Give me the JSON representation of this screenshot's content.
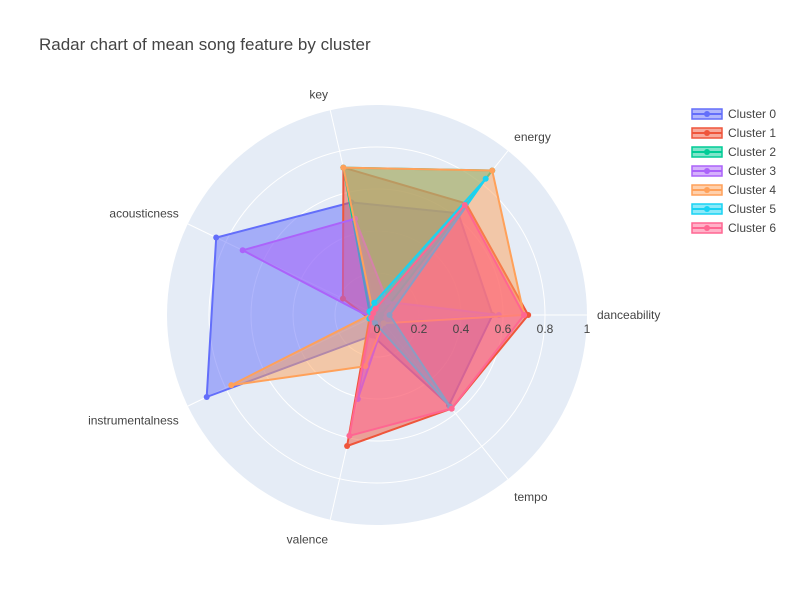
{
  "chart_data": {
    "type": "radar",
    "title": "Radar chart of mean song feature by cluster",
    "axes": [
      "danceability",
      "energy",
      "key",
      "acousticness",
      "instrumentalness",
      "valence",
      "tempo"
    ],
    "radial_range": [
      0,
      1
    ],
    "radial_ticks": [
      "0",
      "0.2",
      "0.4",
      "0.6",
      "0.8",
      "1"
    ],
    "grid": true,
    "legend_position": "top-right",
    "series": [
      {
        "name": "Cluster 0",
        "color": "#636efa",
        "values": [
          0.55,
          0.62,
          0.55,
          0.85,
          0.9,
          0.1,
          0.55
        ]
      },
      {
        "name": "Cluster 1",
        "color": "#EF553B",
        "values": [
          0.72,
          0.68,
          0.72,
          0.18,
          0.04,
          0.64,
          0.57
        ]
      },
      {
        "name": "Cluster 2",
        "color": "#00cc96",
        "values": [
          0.02,
          0.88,
          0.72,
          0.04,
          0.04,
          0.02,
          0.03
        ]
      },
      {
        "name": "Cluster 3",
        "color": "#ab63fa",
        "values": [
          0.58,
          0.08,
          0.47,
          0.71,
          0.03,
          0.41,
          0.05
        ]
      },
      {
        "name": "Cluster 4",
        "color": "#FFA15A",
        "values": [
          0.7,
          0.88,
          0.72,
          0.02,
          0.77,
          0.25,
          0.05
        ]
      },
      {
        "name": "Cluster 5",
        "color": "#19d3f3",
        "values": [
          0.06,
          0.83,
          0.06,
          0.04,
          0.04,
          0.04,
          0.56
        ]
      },
      {
        "name": "Cluster 6",
        "color": "#FF6692",
        "values": [
          0.7,
          0.67,
          0.03,
          0.02,
          0.03,
          0.59,
          0.57
        ]
      }
    ]
  }
}
